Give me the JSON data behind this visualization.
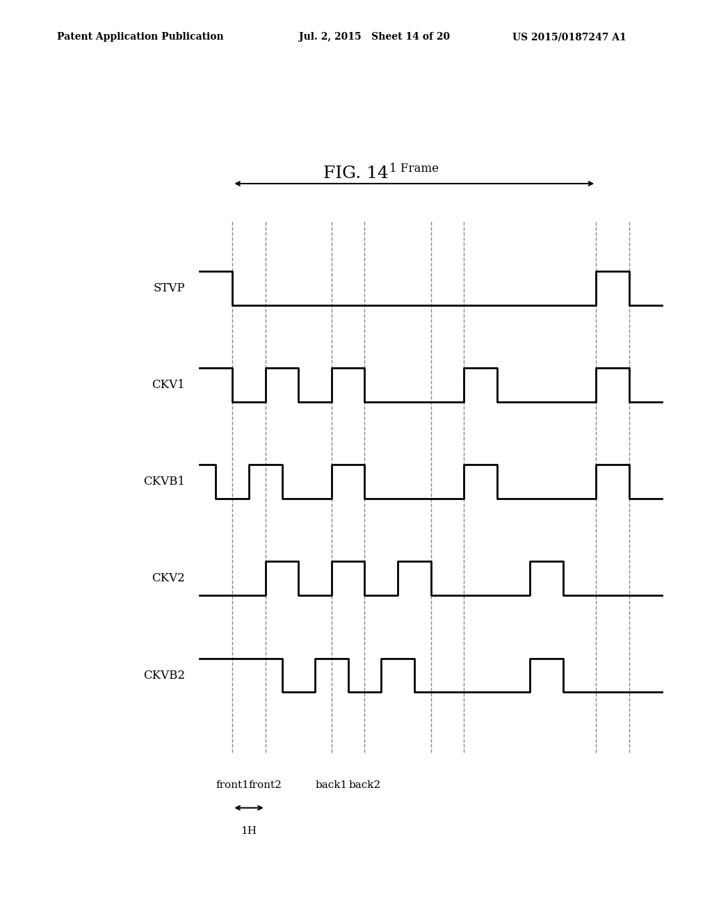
{
  "title": "FIG. 14",
  "header_left": "Patent Application Publication",
  "header_mid": "Jul. 2, 2015   Sheet 14 of 20",
  "header_right": "US 2015/0187247 A1",
  "signals": [
    "STVP",
    "CKV1",
    "CKVB1",
    "CKV2",
    "CKVB2"
  ],
  "frame_label": "1 Frame",
  "timing_label": "1H",
  "bottom_labels": [
    "front1",
    "front2",
    "back1",
    "back2"
  ],
  "dashed_line_color": "#888888",
  "signal_color": "#000000",
  "background_color": "#ffffff"
}
